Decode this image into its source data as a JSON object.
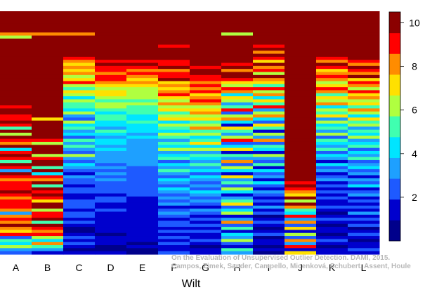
{
  "chart_data": {
    "type": "heatmap",
    "title": "",
    "xlabel": "Wilt",
    "ylabel": "",
    "columns": [
      "A",
      "B",
      "C",
      "D",
      "E",
      "F",
      "G",
      "H",
      "I",
      "J",
      "K",
      "L"
    ],
    "rows_per_column": 80,
    "value_range": [
      0,
      10.5
    ],
    "colorbar": {
      "ticks": [
        "2",
        "4",
        "6",
        "8",
        "10"
      ],
      "tick_values": [
        2,
        4,
        6,
        8,
        10
      ],
      "palette": [
        "#00008B",
        "#0000CD",
        "#1E5AFF",
        "#1EA0FF",
        "#00E5FF",
        "#40FFB0",
        "#B0FF40",
        "#FFE000",
        "#FF8C00",
        "#FF0000",
        "#8B0000"
      ]
    },
    "column_values": [
      [
        10,
        10,
        10,
        10,
        10,
        10,
        10,
        8,
        6,
        10,
        10,
        10,
        10,
        10,
        10,
        10,
        10,
        10,
        10,
        10,
        10,
        10,
        10,
        10,
        10,
        10,
        10,
        10,
        10,
        10,
        10,
        9,
        10,
        10,
        9,
        9,
        10,
        9,
        5,
        10,
        6,
        10,
        9,
        8,
        10,
        4,
        9,
        10,
        9,
        5,
        10,
        9,
        3,
        10,
        9,
        8,
        9,
        9,
        9,
        10,
        9,
        8,
        9,
        9,
        9,
        8,
        3,
        8,
        9,
        8,
        10,
        8,
        7,
        9,
        2,
        5,
        4,
        6,
        3,
        2
      ],
      [
        10,
        10,
        10,
        10,
        10,
        10,
        10,
        8,
        10,
        10,
        10,
        10,
        10,
        10,
        10,
        10,
        10,
        10,
        10,
        10,
        10,
        10,
        10,
        10,
        10,
        10,
        10,
        10,
        10,
        10,
        10,
        10,
        10,
        10,
        10,
        7,
        10,
        10,
        10,
        10,
        10,
        10,
        9,
        6,
        10,
        10,
        10,
        6,
        9,
        10,
        10,
        5,
        10,
        4,
        9,
        8,
        10,
        5,
        10,
        9,
        10,
        9,
        7,
        10,
        10,
        6,
        9,
        9,
        10,
        5,
        10,
        9,
        8,
        9,
        6,
        4,
        8,
        5,
        3,
        1
      ],
      [
        10,
        10,
        10,
        10,
        10,
        10,
        10,
        8,
        10,
        10,
        10,
        10,
        10,
        10,
        10,
        9,
        8,
        7,
        8,
        7,
        8,
        6,
        7,
        9,
        6,
        5,
        7,
        6,
        4,
        6,
        5,
        5,
        4,
        6,
        3,
        2,
        6,
        4,
        5,
        3,
        4,
        2,
        5,
        3,
        5,
        3,
        2,
        6,
        3,
        2,
        4,
        3,
        2,
        1,
        3,
        2,
        2,
        1,
        2,
        2,
        1,
        1,
        2,
        2,
        2,
        1,
        2,
        2,
        1,
        2,
        1,
        0,
        0,
        1,
        2,
        1,
        2,
        1,
        0,
        1
      ],
      [
        10,
        10,
        10,
        10,
        10,
        10,
        10,
        10,
        10,
        10,
        10,
        10,
        10,
        10,
        10,
        10,
        9,
        10,
        9,
        9,
        8,
        9,
        9,
        8,
        7,
        6,
        7,
        7,
        6,
        5,
        6,
        6,
        5,
        4,
        5,
        5,
        4,
        4,
        3,
        5,
        4,
        3,
        4,
        4,
        3,
        4,
        3,
        3,
        3,
        3,
        2,
        3,
        2,
        3,
        2,
        3,
        2,
        2,
        2,
        2,
        1,
        2,
        2,
        1,
        1,
        2,
        1,
        1,
        1,
        1,
        1,
        1,
        1,
        0,
        1,
        1,
        1,
        0,
        0,
        1
      ],
      [
        10,
        10,
        10,
        10,
        10,
        10,
        10,
        10,
        10,
        10,
        10,
        10,
        10,
        10,
        10,
        10,
        9,
        10,
        9,
        8,
        9,
        8,
        7,
        8,
        7,
        6,
        6,
        6,
        6,
        5,
        6,
        5,
        5,
        5,
        4,
        4,
        5,
        4,
        4,
        4,
        3,
        4,
        3,
        3,
        3,
        3,
        3,
        3,
        3,
        3,
        3,
        2,
        2,
        2,
        2,
        2,
        2,
        2,
        2,
        2,
        2,
        1,
        1,
        1,
        1,
        1,
        1,
        1,
        1,
        1,
        1,
        1,
        1,
        1,
        1,
        1,
        0,
        1,
        0,
        0
      ],
      [
        10,
        10,
        10,
        10,
        10,
        10,
        10,
        10,
        10,
        10,
        10,
        9,
        10,
        10,
        10,
        10,
        9,
        9,
        10,
        8,
        9,
        9,
        10,
        7,
        8,
        7,
        8,
        9,
        7,
        6,
        8,
        6,
        7,
        5,
        6,
        7,
        4,
        6,
        5,
        4,
        6,
        5,
        3,
        5,
        4,
        6,
        3,
        4,
        5,
        2,
        4,
        3,
        5,
        3,
        2,
        4,
        3,
        2,
        4,
        3,
        2,
        3,
        2,
        3,
        1,
        2,
        3,
        2,
        1,
        2,
        2,
        1,
        2,
        1,
        2,
        1,
        2,
        1,
        1,
        2
      ],
      [
        10,
        10,
        10,
        10,
        10,
        10,
        10,
        10,
        10,
        10,
        10,
        10,
        10,
        10,
        10,
        10,
        10,
        10,
        9,
        10,
        10,
        9,
        9,
        8,
        9,
        8,
        9,
        7,
        8,
        9,
        8,
        6,
        7,
        8,
        6,
        7,
        5,
        6,
        8,
        5,
        6,
        4,
        5,
        7,
        4,
        6,
        3,
        5,
        4,
        3,
        5,
        3,
        4,
        2,
        4,
        3,
        2,
        3,
        2,
        4,
        3,
        2,
        3,
        2,
        1,
        3,
        2,
        1,
        2,
        1,
        2,
        1,
        2,
        1,
        1,
        2,
        1,
        0,
        1,
        1
      ],
      [
        10,
        10,
        10,
        10,
        10,
        10,
        10,
        6,
        10,
        10,
        10,
        10,
        10,
        10,
        10,
        10,
        10,
        9,
        10,
        8,
        10,
        10,
        9,
        7,
        6,
        9,
        8,
        4,
        7,
        6,
        3,
        5,
        9,
        2,
        6,
        8,
        4,
        1,
        7,
        5,
        3,
        6,
        9,
        2,
        4,
        7,
        1,
        5,
        3,
        8,
        2,
        6,
        4,
        1,
        7,
        3,
        5,
        2,
        6,
        4,
        1,
        3,
        5,
        7,
        2,
        4,
        6,
        1,
        3,
        8,
        2,
        5,
        1,
        4,
        3,
        6,
        2,
        1,
        5,
        3
      ],
      [
        10,
        10,
        10,
        10,
        10,
        10,
        10,
        10,
        10,
        10,
        10,
        9,
        10,
        8,
        10,
        9,
        7,
        10,
        8,
        9,
        6,
        10,
        8,
        7,
        5,
        9,
        6,
        8,
        4,
        7,
        5,
        9,
        3,
        6,
        8,
        4,
        2,
        7,
        5,
        1,
        6,
        3,
        8,
        2,
        5,
        4,
        1,
        6,
        3,
        2,
        5,
        1,
        4,
        2,
        3,
        1,
        4,
        2,
        1,
        3,
        2,
        1,
        2,
        1,
        3,
        1,
        2,
        0,
        1,
        2,
        1,
        0,
        1,
        2,
        0,
        1,
        1,
        0,
        1,
        0
      ],
      [
        10,
        10,
        10,
        10,
        10,
        10,
        10,
        10,
        10,
        10,
        10,
        10,
        10,
        10,
        10,
        10,
        10,
        10,
        10,
        10,
        10,
        10,
        10,
        10,
        10,
        10,
        10,
        10,
        10,
        10,
        10,
        10,
        10,
        10,
        10,
        10,
        10,
        10,
        10,
        10,
        10,
        10,
        10,
        10,
        10,
        10,
        10,
        10,
        10,
        10,
        10,
        10,
        10,
        10,
        10,
        10,
        9,
        10,
        9,
        8,
        7,
        10,
        6,
        10,
        8,
        5,
        4,
        9,
        3,
        8,
        2,
        7,
        1,
        6,
        2,
        8,
        3,
        9,
        1,
        7
      ],
      [
        10,
        10,
        10,
        10,
        10,
        10,
        10,
        10,
        10,
        10,
        10,
        10,
        10,
        10,
        10,
        9,
        8,
        10,
        9,
        7,
        8,
        9,
        8,
        6,
        7,
        9,
        8,
        5,
        7,
        6,
        8,
        4,
        6,
        5,
        7,
        3,
        6,
        4,
        5,
        3,
        6,
        2,
        5,
        4,
        3,
        5,
        2,
        4,
        3,
        1,
        4,
        2,
        3,
        1,
        2,
        3,
        1,
        2,
        1,
        2,
        1,
        2,
        1,
        1,
        2,
        1,
        0,
        1,
        2,
        1,
        0,
        1,
        1,
        0,
        1,
        2,
        1,
        0,
        1,
        1
      ],
      [
        10,
        10,
        10,
        10,
        10,
        10,
        10,
        10,
        10,
        10,
        10,
        10,
        10,
        10,
        10,
        10,
        9,
        8,
        10,
        9,
        8,
        10,
        7,
        9,
        8,
        6,
        9,
        7,
        8,
        6,
        7,
        5,
        8,
        6,
        4,
        7,
        5,
        6,
        3,
        5,
        4,
        6,
        3,
        4,
        5,
        2,
        4,
        3,
        5,
        2,
        3,
        4,
        2,
        3,
        1,
        3,
        2,
        4,
        1,
        2,
        3,
        1,
        2,
        1,
        2,
        1,
        3,
        1,
        2,
        1,
        2,
        0,
        1,
        2,
        1,
        0,
        1,
        1,
        2,
        1
      ]
    ],
    "annotations": [
      "On the Evaluation of Unsupervised Outlier Detection. DAMI, 2015.",
      "Campos, Zimek, Sander, Campello, Micenková, Schubert, Assent, Houle"
    ]
  }
}
